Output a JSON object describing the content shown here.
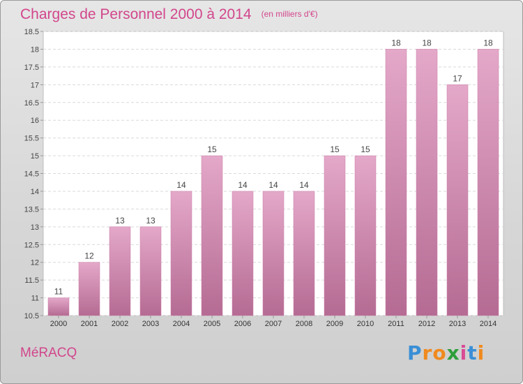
{
  "chart_data": {
    "type": "bar",
    "title": "Charges de Personnel 2000 à 2014",
    "subtitle": "(en milliers d'€)",
    "categories": [
      "2000",
      "2001",
      "2002",
      "2003",
      "2004",
      "2005",
      "2006",
      "2007",
      "2008",
      "2009",
      "2010",
      "2011",
      "2012",
      "2013",
      "2014"
    ],
    "values": [
      11,
      12,
      13,
      13,
      14,
      15,
      14,
      14,
      14,
      15,
      15,
      18,
      18,
      17,
      18
    ],
    "value_labels": [
      "11",
      "12",
      "13",
      "13",
      "14",
      "15",
      "14",
      "14",
      "14",
      "15",
      "15",
      "18",
      "18",
      "17",
      "18"
    ],
    "yticks": [
      "10.5",
      "11",
      "11.5",
      "12",
      "12.5",
      "13",
      "13.5",
      "14",
      "14.5",
      "15",
      "15.5",
      "16",
      "16.5",
      "17",
      "17.5",
      "18",
      "18.5"
    ],
    "ylim": [
      10.5,
      18.5
    ],
    "grid": true,
    "bar_color": "#d68db5",
    "title_color": "#d2468c"
  },
  "commune": "MéRACQ",
  "logo": {
    "text": "Proxiti",
    "letters": [
      "P",
      "r",
      "o",
      "x",
      "i",
      "t",
      "i"
    ],
    "colors": [
      "#3a8fd6",
      "#f08a1e",
      "#f08a1e",
      "#2e9e3a",
      "#d94a94",
      "#3a8fd6",
      "#f08a1e"
    ]
  }
}
